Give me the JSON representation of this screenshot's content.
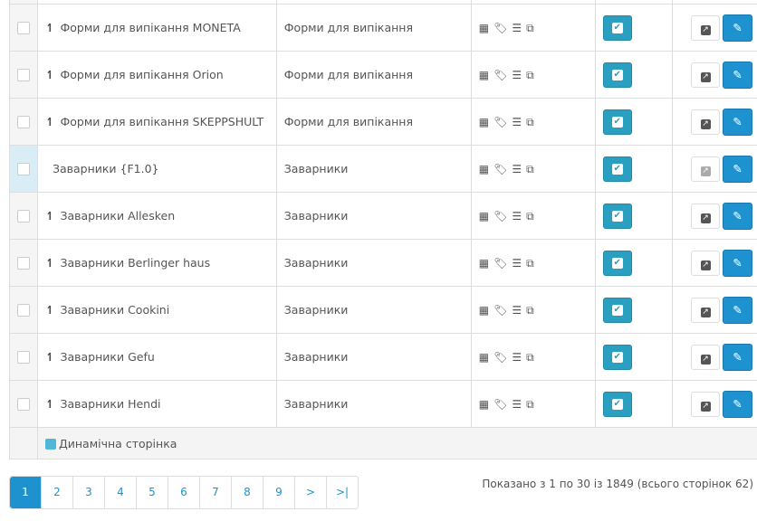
{
  "rows": [
    {
      "name": "Форми для випікання MONETA",
      "category": "Форми для випікання",
      "child": true,
      "link_enabled": true
    },
    {
      "name": "Форми для випікання Orion",
      "category": "Форми для випікання",
      "child": true,
      "link_enabled": true
    },
    {
      "name": "Форми для випікання SKEPPSHULT",
      "category": "Форми для випікання",
      "child": true,
      "link_enabled": true
    },
    {
      "name": "Заварники {F1.0}",
      "category": "Заварники",
      "child": false,
      "link_enabled": false
    },
    {
      "name": "Заварники Allesken",
      "category": "Заварники",
      "child": true,
      "link_enabled": true
    },
    {
      "name": "Заварники Berlinger haus",
      "category": "Заварники",
      "child": true,
      "link_enabled": true
    },
    {
      "name": "Заварники Cookini",
      "category": "Заварники",
      "child": true,
      "link_enabled": true
    },
    {
      "name": "Заварники Gefu",
      "category": "Заварники",
      "child": true,
      "link_enabled": true
    },
    {
      "name": "Заварники Hendi",
      "category": "Заварники",
      "child": true,
      "link_enabled": true
    }
  ],
  "legend": {
    "label": "Динамічна сторінка",
    "color": "#4fb8d8"
  },
  "pagination": {
    "pages": [
      "1",
      "2",
      "3",
      "4",
      "5",
      "6",
      "7",
      "8",
      "9",
      ">",
      ">|"
    ],
    "current": "1"
  },
  "info": "Показано з 1 по 30 із 1849 (всього сторінок 62)",
  "colors": {
    "primary": "#1e91cf",
    "status": "#2a9fbf"
  }
}
